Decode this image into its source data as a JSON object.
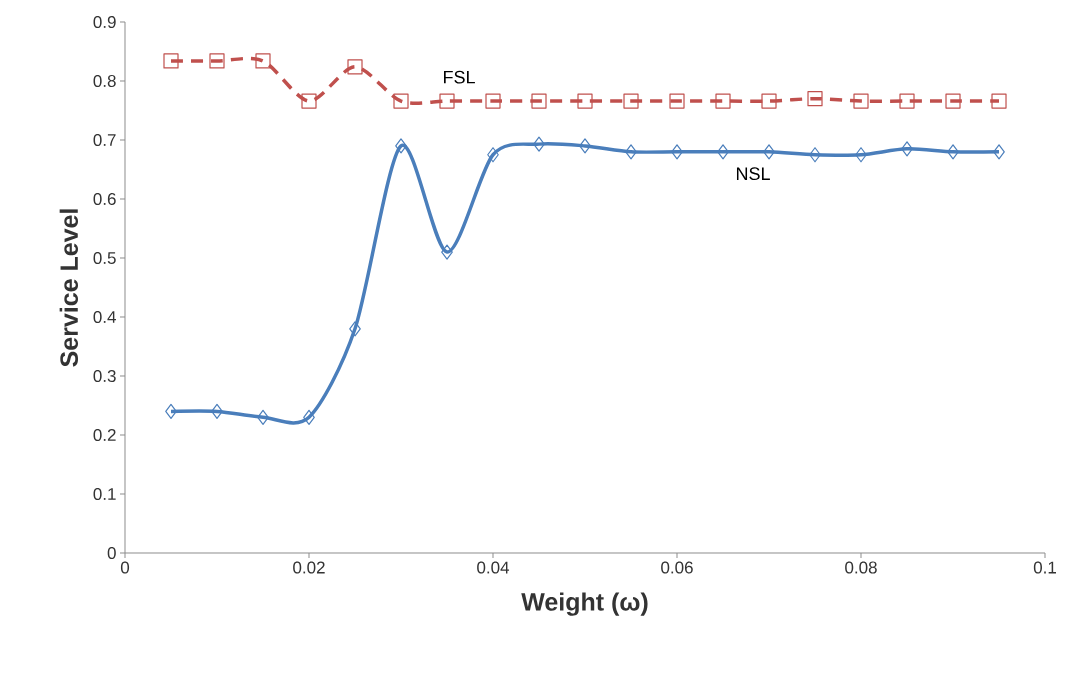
{
  "chart_data": {
    "type": "line",
    "xlabel": "Weight (ω)",
    "ylabel": "Service Level",
    "x": [
      0.005,
      0.01,
      0.015,
      0.02,
      0.025,
      0.03,
      0.035,
      0.04,
      0.045,
      0.05,
      0.055,
      0.06,
      0.065,
      0.07,
      0.075,
      0.08,
      0.085,
      0.09,
      0.095
    ],
    "series": [
      {
        "name": "FSL",
        "color": "#c0504d",
        "marker": "square",
        "line_style": "dashed",
        "values": [
          0.834,
          0.834,
          0.834,
          0.766,
          0.824,
          0.766,
          0.766,
          0.766,
          0.766,
          0.766,
          0.766,
          0.766,
          0.766,
          0.766,
          0.77,
          0.766,
          0.766,
          0.766,
          0.766
        ]
      },
      {
        "name": "NSL",
        "color": "#4a7ebb",
        "marker": "diamond",
        "line_style": "solid",
        "values": [
          0.24,
          0.24,
          0.23,
          0.23,
          0.38,
          0.69,
          0.51,
          0.675,
          0.693,
          0.69,
          0.68,
          0.68,
          0.68,
          0.68,
          0.675,
          0.675,
          0.685,
          0.68,
          0.68
        ]
      }
    ],
    "xlim": [
      0,
      0.1
    ],
    "ylim": [
      0,
      0.9
    ],
    "xticks": [
      0,
      0.02,
      0.04,
      0.06,
      0.08,
      0.1
    ],
    "yticks": [
      0,
      0.1,
      0.2,
      0.3,
      0.4,
      0.5,
      0.6,
      0.7,
      0.8,
      0.9
    ],
    "grid": false,
    "legend": false
  }
}
